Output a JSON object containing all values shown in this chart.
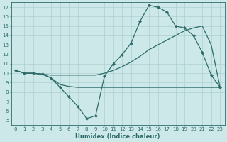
{
  "line1_x": [
    0,
    1,
    2,
    3,
    4,
    5,
    6,
    7,
    8,
    9,
    10,
    11,
    12,
    13,
    14,
    15,
    16,
    17,
    18,
    19,
    20,
    21,
    22,
    23
  ],
  "line1_y": [
    10.3,
    10.0,
    10.0,
    9.9,
    9.5,
    8.5,
    7.5,
    6.5,
    5.2,
    5.5,
    9.7,
    11.0,
    12.0,
    13.2,
    15.5,
    17.2,
    17.0,
    16.5,
    15.0,
    14.8,
    14.0,
    12.2,
    9.8,
    8.5
  ],
  "line2_x": [
    0,
    1,
    2,
    3,
    4,
    5,
    6,
    7,
    8,
    9,
    10,
    11,
    12,
    13,
    14,
    15,
    16,
    17,
    18,
    19,
    20,
    21,
    22,
    23
  ],
  "line2_y": [
    10.3,
    10.0,
    10.0,
    9.9,
    9.8,
    9.8,
    9.8,
    9.8,
    9.8,
    9.8,
    10.0,
    10.3,
    10.7,
    11.2,
    11.8,
    12.5,
    13.0,
    13.5,
    14.0,
    14.5,
    14.8,
    15.0,
    13.0,
    8.5
  ],
  "line3_x": [
    0,
    1,
    2,
    3,
    4,
    5,
    6,
    7,
    8,
    9,
    10,
    11,
    12,
    13,
    14,
    15,
    16,
    17,
    18,
    19,
    20,
    21,
    22,
    23
  ],
  "line3_y": [
    10.3,
    10.0,
    10.0,
    9.9,
    9.5,
    8.8,
    8.6,
    8.5,
    8.5,
    8.5,
    8.5,
    8.5,
    8.5,
    8.5,
    8.5,
    8.5,
    8.5,
    8.5,
    8.5,
    8.5,
    8.5,
    8.5,
    8.5,
    8.5
  ],
  "xlabel": "Humidex (Indice chaleur)",
  "xlim": [
    -0.5,
    23.5
  ],
  "ylim": [
    4.5,
    17.5
  ],
  "yticks": [
    5,
    6,
    7,
    8,
    9,
    10,
    11,
    12,
    13,
    14,
    15,
    16,
    17
  ],
  "xticks": [
    0,
    1,
    2,
    3,
    4,
    5,
    6,
    7,
    8,
    9,
    10,
    11,
    12,
    13,
    14,
    15,
    16,
    17,
    18,
    19,
    20,
    21,
    22,
    23
  ],
  "bg_color": "#cde8e8",
  "line_color": "#2d6b6b",
  "grid_color": "#aed0d0"
}
